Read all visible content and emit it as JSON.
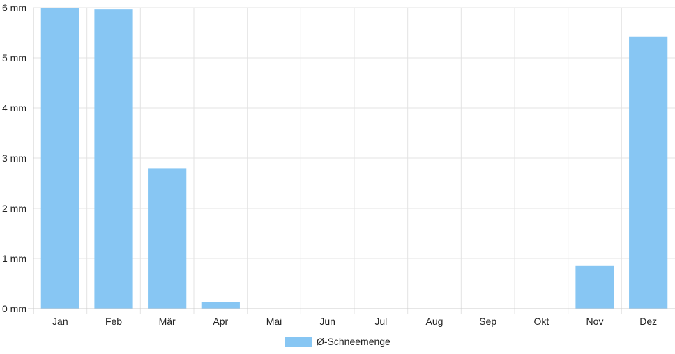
{
  "chart_data": {
    "type": "bar",
    "categories": [
      "Jan",
      "Feb",
      "Mär",
      "Apr",
      "Mai",
      "Jun",
      "Jul",
      "Aug",
      "Sep",
      "Okt",
      "Nov",
      "Dez"
    ],
    "series": [
      {
        "name": "Ø-Schneemenge",
        "values": [
          6.0,
          5.97,
          2.8,
          0.13,
          0,
          0,
          0,
          0,
          0,
          0,
          0.85,
          5.42
        ],
        "color": "#87c6f3"
      }
    ],
    "yticks": [
      "0 mm",
      "1 mm",
      "2 mm",
      "3 mm",
      "4 mm",
      "5 mm",
      "6 mm"
    ],
    "ylim": [
      0,
      6
    ],
    "grid": true,
    "legend_position": "bottom-center",
    "title": "",
    "xlabel": "",
    "ylabel": ""
  }
}
